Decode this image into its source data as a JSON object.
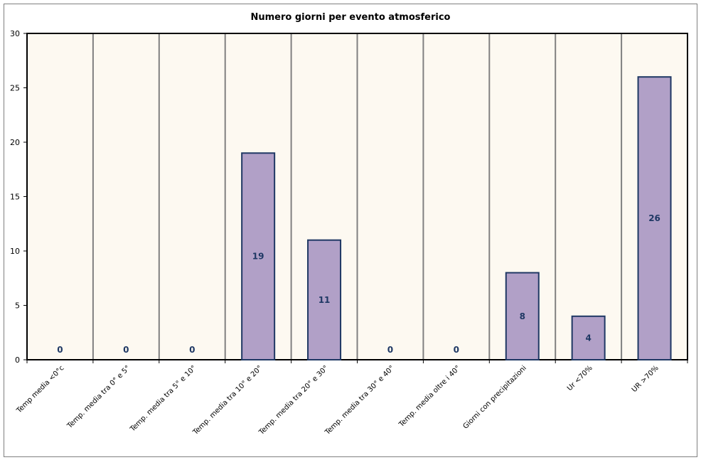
{
  "chart_data": {
    "type": "bar",
    "title": "Numero giorni per evento atmosferico",
    "categories": [
      "Temp media <0°c",
      "Temp. media tra 0° e 5°",
      "Temp. media tra 5° e 10°",
      "Temp. media tra 10° e 20°",
      "Temp. media tra 20° e 30°",
      "Temp. media tra 30° e 40°",
      "Temp. media oltre i 40°",
      "Giorni con precipitazioni",
      "Ur <70%",
      "UR >70%"
    ],
    "values": [
      0,
      0,
      0,
      19,
      11,
      0,
      0,
      8,
      4,
      26
    ],
    "ylim": [
      0,
      30
    ],
    "yticks": [
      0,
      5,
      10,
      15,
      20,
      25,
      30
    ],
    "grid": "vertical separators between categories",
    "colors": {
      "bar_fill": "#b1a0c7",
      "bar_stroke": "#1f3864",
      "plot_bg": "#fdf9f1",
      "data_label": "#1f3864",
      "grid": "#808080"
    }
  }
}
